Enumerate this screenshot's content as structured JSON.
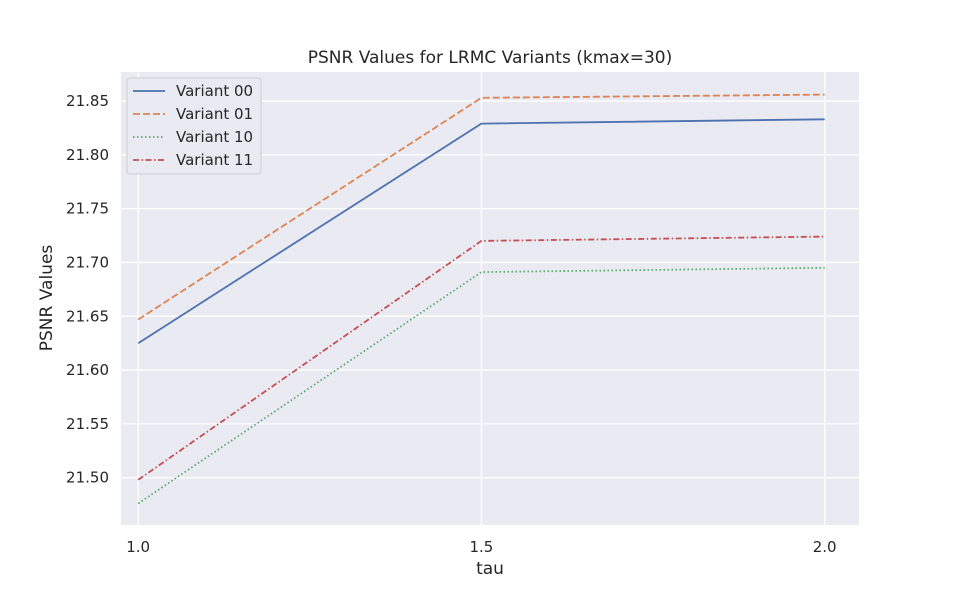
{
  "chart_data": {
    "type": "line",
    "title": "PSNR Values for LRMC Variants (kmax=30)",
    "xlabel": "tau",
    "ylabel": "PSNR Values",
    "x": [
      1.0,
      1.5,
      2.0
    ],
    "x_tick_labels": [
      "1.0",
      "1.5",
      "2.0"
    ],
    "xlim": [
      0.975,
      2.05
    ],
    "y_ticks": [
      21.5,
      21.55,
      21.6,
      21.65,
      21.7,
      21.75,
      21.8,
      21.85
    ],
    "y_tick_labels": [
      "21.50",
      "21.55",
      "21.60",
      "21.65",
      "21.70",
      "21.75",
      "21.80",
      "21.85"
    ],
    "ylim": [
      21.456,
      21.877
    ],
    "grid": true,
    "legend_position": "top-left",
    "series": [
      {
        "name": "Variant 00",
        "values": [
          21.625,
          21.829,
          21.833
        ],
        "color": "#4c72b0",
        "dash": "solid"
      },
      {
        "name": "Variant 01",
        "values": [
          21.647,
          21.853,
          21.856
        ],
        "color": "#dd8452",
        "dash": "dashed"
      },
      {
        "name": "Variant 10",
        "values": [
          21.476,
          21.691,
          21.695
        ],
        "color": "#55a868",
        "dash": "dotted"
      },
      {
        "name": "Variant 11",
        "values": [
          21.498,
          21.72,
          21.724
        ],
        "color": "#c44e52",
        "dash": "dashdot"
      }
    ]
  }
}
